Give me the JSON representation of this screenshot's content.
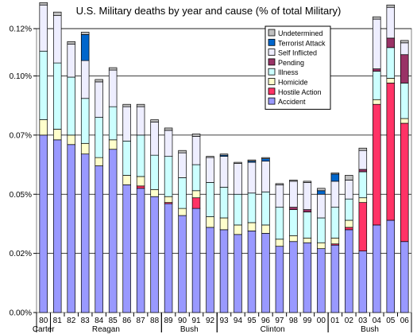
{
  "chart_data": {
    "type": "bar",
    "stacked": true,
    "title": "U.S. Military deaths by year and cause (% of total Military)",
    "categories": [
      "80",
      "81",
      "82",
      "83",
      "84",
      "85",
      "86",
      "87",
      "88",
      "89",
      "90",
      "91",
      "92",
      "93",
      "94",
      "95",
      "96",
      "97",
      "98",
      "99",
      "00",
      "01",
      "02",
      "03",
      "04",
      "05",
      "06"
    ],
    "president_groups": [
      {
        "name": "Carter",
        "from": "80",
        "to": "80"
      },
      {
        "name": "Reagan",
        "from": "81",
        "to": "88"
      },
      {
        "name": "Bush",
        "from": "89",
        "to": "92"
      },
      {
        "name": "Clinton",
        "from": "93",
        "to": "00"
      },
      {
        "name": "Bush",
        "from": "01",
        "to": "06"
      }
    ],
    "series": [
      {
        "name": "Accident",
        "color": "#9999ff",
        "values": [
          0.075,
          0.073,
          0.071,
          0.067,
          0.062,
          0.069,
          0.054,
          0.0525,
          0.049,
          0.046,
          0.041,
          0.044,
          0.036,
          0.035,
          0.033,
          0.0345,
          0.0335,
          0.028,
          0.03,
          0.0295,
          0.027,
          0.0285,
          0.035,
          0.026,
          0.037,
          0.039,
          0.03
        ]
      },
      {
        "name": "Hostile Action",
        "color": "#ff3366",
        "values": [
          0,
          0,
          0,
          0,
          0,
          0,
          0,
          0.001,
          0,
          0.0005,
          0,
          0.0045,
          0,
          0,
          0,
          0,
          0,
          0,
          0,
          0,
          0,
          0.0005,
          0.001,
          0.0205,
          0.051,
          0.058,
          0.05
        ]
      },
      {
        "name": "Homicide",
        "color": "#ffffcc",
        "values": [
          0.0065,
          0.0045,
          0.004,
          0.0045,
          0.0035,
          0.004,
          0.004,
          0.004,
          0.003,
          0.0025,
          0.003,
          0.003,
          0.0045,
          0.005,
          0.004,
          0.0035,
          0.0035,
          0.003,
          0.0025,
          0.002,
          0.0025,
          0.0025,
          0.003,
          0.002,
          0.002,
          0.002,
          0.002
        ]
      },
      {
        "name": "Illness",
        "color": "#ccffff",
        "values": [
          0.029,
          0.028,
          0.0245,
          0.019,
          0.017,
          0.014,
          0.0145,
          0.0175,
          0.0145,
          0.017,
          0.013,
          0.011,
          0.0145,
          0.013,
          0.013,
          0.0125,
          0.014,
          0.0135,
          0.011,
          0.011,
          0.0105,
          0.013,
          0.009,
          0.011,
          0.012,
          0.013,
          0.015
        ]
      },
      {
        "name": "Pending",
        "color": "#993366",
        "values": [
          0,
          0,
          0,
          0,
          0,
          0,
          0,
          0,
          0,
          0,
          0,
          0,
          0,
          0,
          0,
          0,
          0,
          0,
          0.001,
          0.001,
          0,
          0,
          0,
          0.001,
          0.001,
          0.004,
          0.012
        ]
      },
      {
        "name": "Self Inflicted",
        "color": "#eeeeff",
        "values": [
          0.0195,
          0.02,
          0.014,
          0.016,
          0.015,
          0.0155,
          0.0145,
          0.012,
          0.014,
          0.011,
          0.0105,
          0.012,
          0.0105,
          0.013,
          0.013,
          0.013,
          0.013,
          0.0095,
          0.011,
          0.0115,
          0.01,
          0.011,
          0.008,
          0.008,
          0.021,
          0.013,
          0.005
        ]
      },
      {
        "name": "Terrorist Attack",
        "color": "#0066cc",
        "values": [
          0,
          0,
          0,
          0.011,
          0,
          0,
          0,
          0,
          0,
          0,
          0,
          0,
          0,
          0.0005,
          0,
          0.0005,
          0.001,
          0,
          0,
          0,
          0.0015,
          0.003,
          0,
          0,
          0,
          0,
          0
        ]
      },
      {
        "name": "Undetermined",
        "color": "#c0c0c0",
        "values": [
          0.001,
          0.0015,
          0.001,
          0.001,
          0.001,
          0.001,
          0.001,
          0.001,
          0.001,
          0.001,
          0.001,
          0.001,
          0.0005,
          0.0005,
          0.0005,
          0.0005,
          0.0005,
          0.0005,
          0.0005,
          0.0005,
          0.001,
          0.0005,
          0.002,
          0.001,
          0.001,
          0.001,
          0.001
        ]
      }
    ],
    "legend_order": [
      "Undetermined",
      "Terrorist Attack",
      "Self Inflicted",
      "Pending",
      "Illness",
      "Homicide",
      "Hostile Action",
      "Accident"
    ],
    "legend_position": "top-right",
    "ylim": [
      0,
      0.12
    ],
    "yticks": [
      0,
      0.025,
      0.05,
      0.075,
      0.1,
      0.12
    ],
    "ytick_labels": [
      "0.00%",
      "0.02%",
      "0.05%",
      "0.07%",
      "0.10%",
      "0.12%"
    ],
    "grid": true,
    "xlabel": "",
    "ylabel": ""
  }
}
